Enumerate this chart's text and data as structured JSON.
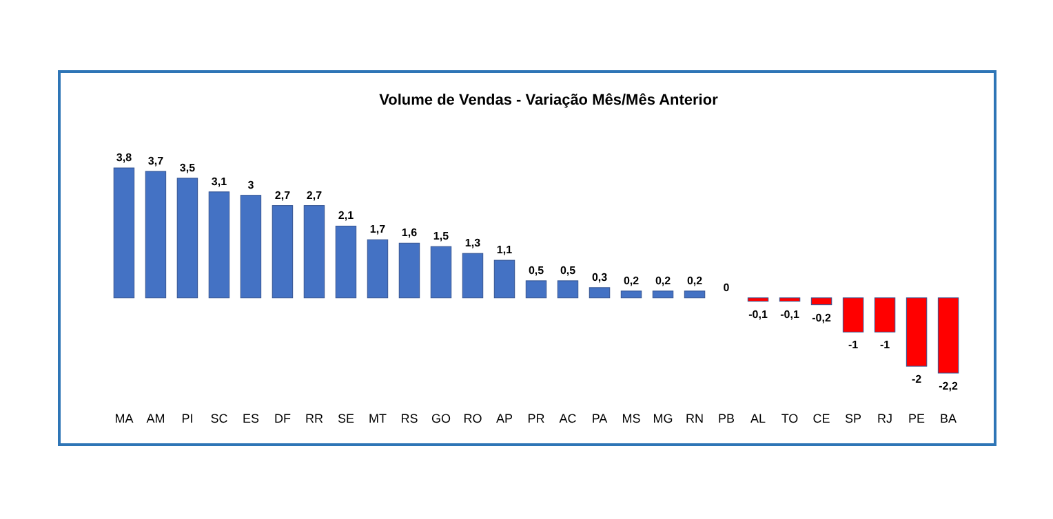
{
  "chart_data": {
    "type": "bar",
    "title": "Volume de Vendas - Variação Mês/Mês Anterior",
    "categories": [
      "MA",
      "AM",
      "PI",
      "SC",
      "ES",
      "DF",
      "RR",
      "SE",
      "MT",
      "RS",
      "GO",
      "RO",
      "AP",
      "PR",
      "AC",
      "PA",
      "MS",
      "MG",
      "RN",
      "PB",
      "AL",
      "TO",
      "CE",
      "SP",
      "RJ",
      "PE",
      "BA"
    ],
    "values": [
      3.8,
      3.7,
      3.5,
      3.1,
      3,
      2.7,
      2.7,
      2.1,
      1.7,
      1.6,
      1.5,
      1.3,
      1.1,
      0.5,
      0.5,
      0.3,
      0.2,
      0.2,
      0.2,
      0,
      -0.1,
      -0.1,
      -0.2,
      -1,
      -1,
      -2,
      -2.2
    ],
    "value_labels": [
      "3,8",
      "3,7",
      "3,5",
      "3,1",
      "3",
      "2,7",
      "2,7",
      "2,1",
      "1,7",
      "1,6",
      "1,5",
      "1,3",
      "1,1",
      "0,5",
      "0,5",
      "0,3",
      "0,2",
      "0,2",
      "0,2",
      "0",
      "-0,1",
      "-0,1",
      "-0,2",
      "-1",
      "-1",
      "-2",
      "-2,2"
    ],
    "colors": [
      "#4472c4",
      "#4472c4",
      "#4472c4",
      "#4472c4",
      "#4472c4",
      "#4472c4",
      "#4472c4",
      "#4472c4",
      "#4472c4",
      "#4472c4",
      "#4472c4",
      "#4472c4",
      "#4472c4",
      "#4472c4",
      "#4472c4",
      "#4472c4",
      "#4472c4",
      "#4472c4",
      "#4472c4",
      "#4472c4",
      "#ff0000",
      "#ff0000",
      "#ff0000",
      "#ff0000",
      "#ff0000",
      "#ff0000",
      "#ff0000"
    ]
  }
}
